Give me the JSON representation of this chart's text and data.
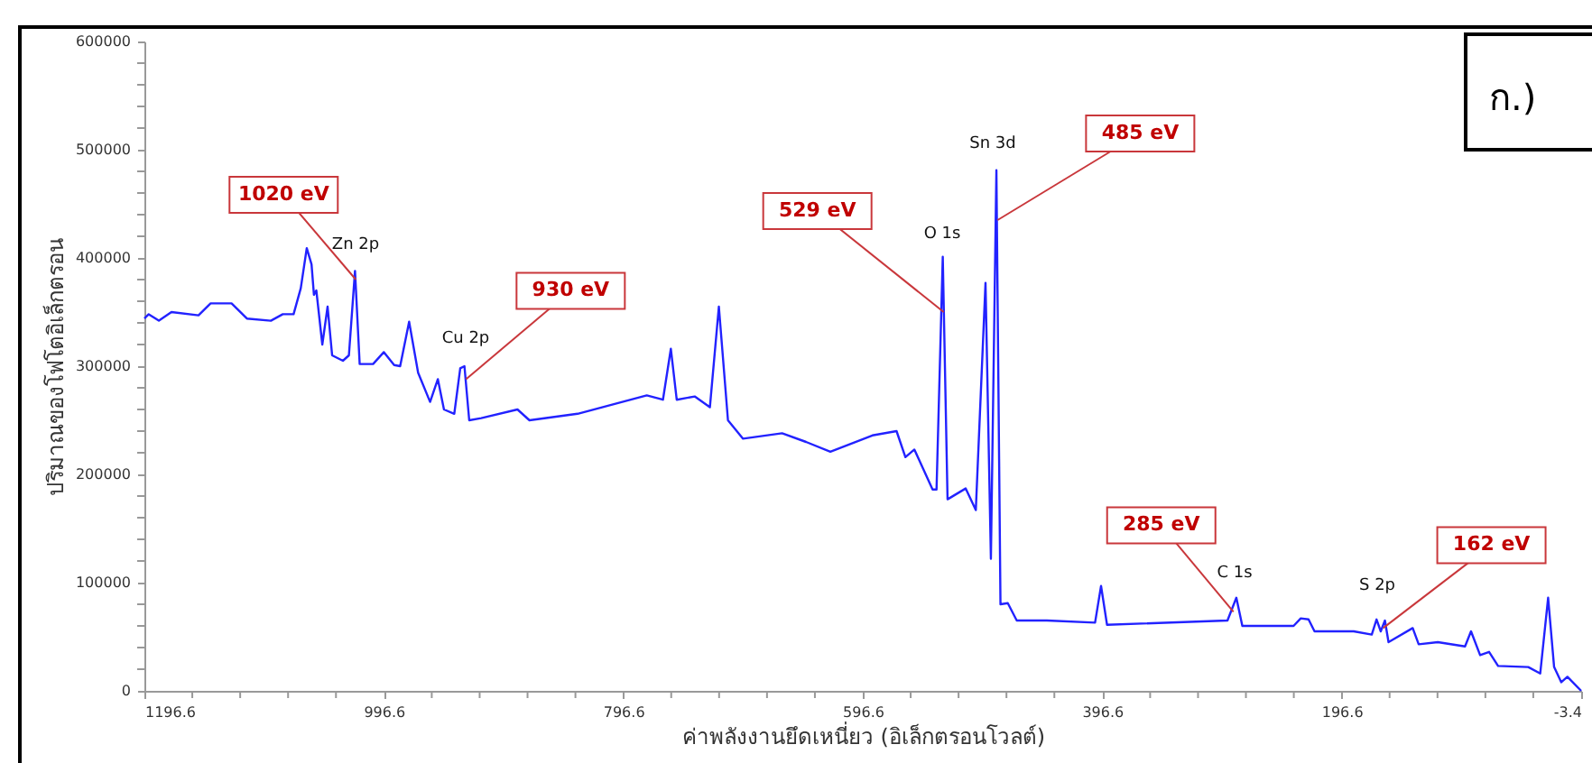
{
  "chart_data": {
    "type": "line",
    "xlabel": "ค่าพลังงานยึดเหนี่ยว (อิเล็กตรอนโวลต์)",
    "ylabel": "ปริมาณของโฟโตอิเล็กตรอน",
    "x": [
      1196.6,
      1193,
      1184.5,
      1174,
      1151.4,
      1141.3,
      1123.8,
      1111,
      1091,
      1081,
      1072,
      1066,
      1061,
      1057,
      1055,
      1053,
      1048,
      1043.6,
      1039.8,
      1030.8,
      1025.8,
      1020.7,
      1016.8,
      1005.6,
      996.6,
      988,
      983,
      975.5,
      968,
      958,
      951.5,
      946.4,
      937.8,
      932.8,
      929.3,
      925.3,
      915.3,
      885,
      875,
      834.8,
      777,
      763.5,
      756.9,
      752,
      737,
      724.3,
      716.8,
      709.2,
      696.6,
      664,
      644,
      623.7,
      588.6,
      568.4,
      561,
      553.5,
      538.3,
      535,
      529.8,
      525.8,
      510.7,
      502.2,
      494.1,
      489.6,
      485,
      481.6,
      475.5,
      468,
      442.8,
      402.6,
      397.6,
      392.6,
      292,
      284.6,
      279.6,
      236.8,
      230.8,
      224.3,
      219.3,
      186.6,
      171.5,
      167.5,
      164,
      160.5,
      157.5,
      137.3,
      132.3,
      116.3,
      93.6,
      88.6,
      81,
      73.5,
      66,
      40.8,
      30.8,
      24.2,
      19.2,
      13.2,
      8.1,
      -3.4
    ],
    "series": [
      {
        "color": "#2222ff",
        "values": [
          344000,
          348000,
          342000,
          350000,
          347000,
          358000,
          358000,
          344000,
          342000,
          348000,
          348000,
          372000,
          409000,
          394000,
          366000,
          370000,
          320000,
          355000,
          310000,
          305000,
          310000,
          388000,
          302000,
          302000,
          313000,
          301000,
          300000,
          341000,
          294000,
          267000,
          288000,
          260000,
          256000,
          298000,
          300000,
          250000,
          252000,
          260000,
          250000,
          256000,
          273000,
          269000,
          316000,
          269000,
          272000,
          262000,
          355000,
          250000,
          233000,
          238000,
          230000,
          221000,
          236000,
          240000,
          216000,
          223000,
          186000,
          186000,
          401000,
          177000,
          187000,
          167000,
          377000,
          122000,
          481000,
          80000,
          81000,
          65000,
          65000,
          63000,
          97000,
          61000,
          65000,
          86000,
          60000,
          60000,
          67000,
          66000,
          55000,
          55000,
          52000,
          66000,
          55000,
          65000,
          45000,
          58000,
          43000,
          45000,
          41000,
          55000,
          33000,
          36000,
          23000,
          22000,
          16000,
          86000,
          22000,
          8000,
          13000,
          0
        ]
      }
    ],
    "xlim": [
      1196.6,
      -3.4
    ],
    "xticks": [
      1196.6,
      {
        "value": 1156.6,
        "label": null
      },
      {
        "value": 1116.6,
        "label": null
      },
      {
        "value": 1076.6,
        "label": null
      },
      {
        "value": 1036.6,
        "label": null
      },
      996.6,
      {
        "value": 956.6,
        "label": null
      },
      {
        "value": 916.6,
        "label": null
      },
      {
        "value": 876.6,
        "label": null
      },
      {
        "value": 836.6,
        "label": null
      },
      796.6,
      {
        "value": 756.6,
        "label": null
      },
      {
        "value": 716.6,
        "label": null
      },
      {
        "value": 676.6,
        "label": null
      },
      {
        "value": 636.6,
        "label": null
      },
      596.6,
      {
        "value": 556.6,
        "label": null
      },
      {
        "value": 516.6,
        "label": null
      },
      {
        "value": 476.6,
        "label": null
      },
      {
        "value": 436.6,
        "label": null
      },
      396.6,
      {
        "value": 356.6,
        "label": null
      },
      {
        "value": 316.6,
        "label": null
      },
      {
        "value": 276.6,
        "label": null
      },
      {
        "value": 236.6,
        "label": null
      },
      196.6,
      {
        "value": 156.6,
        "label": null
      },
      {
        "value": 116.6,
        "label": null
      },
      {
        "value": 76.6,
        "label": null
      },
      {
        "value": 36.6,
        "label": null
      },
      -3.4
    ],
    "ylim": [
      0,
      600000
    ],
    "yticks": [
      0,
      {
        "value": 20000,
        "label": null
      },
      {
        "value": 40000,
        "label": null
      },
      {
        "value": 60000,
        "label": null
      },
      {
        "value": 80000,
        "label": null
      },
      100000,
      {
        "value": 120000,
        "label": null
      },
      {
        "value": 140000,
        "label": null
      },
      {
        "value": 160000,
        "label": null
      },
      {
        "value": 180000,
        "label": null
      },
      200000,
      {
        "value": 220000,
        "label": null
      },
      {
        "value": 240000,
        "label": null
      },
      {
        "value": 260000,
        "label": null
      },
      {
        "value": 280000,
        "label": null
      },
      300000,
      {
        "value": 320000,
        "label": null
      },
      {
        "value": 340000,
        "label": null
      },
      {
        "value": 360000,
        "label": null
      },
      {
        "value": 380000,
        "label": null
      },
      400000,
      {
        "value": 420000,
        "label": null
      },
      {
        "value": 440000,
        "label": null
      },
      {
        "value": 460000,
        "label": null
      },
      {
        "value": 480000,
        "label": null
      },
      500000,
      {
        "value": 520000,
        "label": null
      },
      {
        "value": 540000,
        "label": null
      },
      {
        "value": 560000,
        "label": null
      },
      {
        "value": 580000,
        "label": null
      },
      600000
    ],
    "annotations": [
      {
        "text": "1020 eV",
        "x": 1020,
        "y": 380000
      },
      {
        "text": "930 eV",
        "x": 928,
        "y": 288000
      },
      {
        "text": "529 eV",
        "x": 529,
        "y": 350000
      },
      {
        "text": "485 eV",
        "x": 484,
        "y": 435000
      },
      {
        "text": "285 eV",
        "x": 287,
        "y": 73000
      },
      {
        "text": "162 eV",
        "x": 162,
        "y": 58000
      },
      "Zn 2p",
      "Cu 2p",
      "O 1s",
      "Sn 3d",
      "C 1s",
      "S 2p",
      "ก.)"
    ]
  }
}
